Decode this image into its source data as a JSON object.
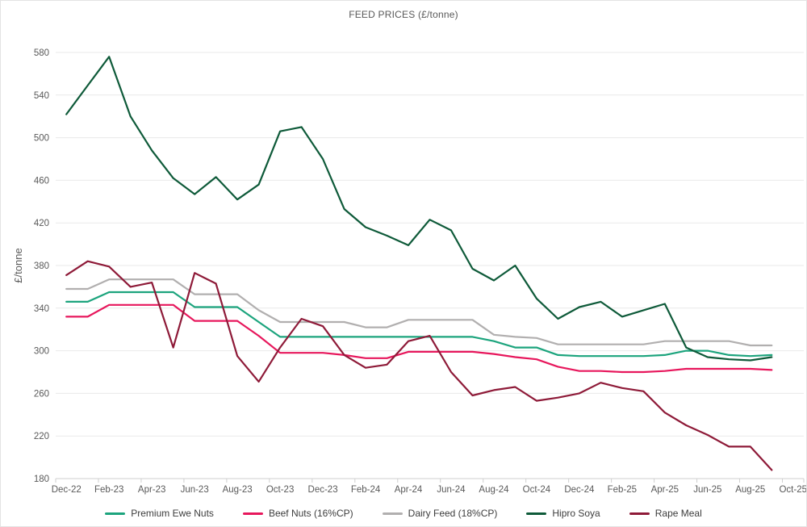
{
  "title": "FEED PRICES (£/tonne)",
  "colors": {
    "gridline": "#e9e9e9",
    "axis": "#cfcfcf",
    "text": "#595959",
    "background": "#ffffff"
  },
  "y_axis": {
    "label": "£/tonne",
    "min": 180,
    "max": 580,
    "step": 40,
    "ticks": [
      180,
      220,
      260,
      300,
      340,
      380,
      420,
      460,
      500,
      540,
      580
    ]
  },
  "x_axis": {
    "tick_labels": [
      "Dec-22",
      "Feb-23",
      "Apr-23",
      "Jun-23",
      "Aug-23",
      "Oct-23",
      "Dec-23",
      "Feb-24",
      "Apr-24",
      "Jun-24",
      "Aug-24",
      "Oct-24",
      "Dec-24",
      "Feb-25",
      "Apr-25",
      "Jun-25",
      "Aug-25",
      "Oct-25"
    ]
  },
  "chart_data": {
    "type": "line",
    "title": "FEED PRICES (£/tonne)",
    "xlabel": "",
    "ylabel": "£/tonne",
    "ylim": [
      180,
      580
    ],
    "grid": "horizontal",
    "legend_position": "bottom",
    "x_monthly": [
      "Dec-22",
      "Jan-23",
      "Feb-23",
      "Mar-23",
      "Apr-23",
      "May-23",
      "Jun-23",
      "Jul-23",
      "Aug-23",
      "Sep-23",
      "Oct-23",
      "Nov-23",
      "Dec-23",
      "Jan-24",
      "Feb-24",
      "Mar-24",
      "Apr-24",
      "May-24",
      "Jun-24",
      "Jul-24",
      "Aug-24",
      "Sep-24",
      "Oct-24",
      "Nov-24",
      "Dec-24",
      "Jan-25",
      "Feb-25",
      "Mar-25",
      "Apr-25",
      "May-25",
      "Jun-25",
      "Jul-25",
      "Aug-25",
      "Sep-25"
    ],
    "series": [
      {
        "name": "Premium Ewe Nuts",
        "color": "#1ca47d",
        "values": [
          346,
          346,
          355,
          355,
          355,
          355,
          341,
          341,
          341,
          327,
          313,
          313,
          313,
          313,
          313,
          313,
          313,
          313,
          313,
          313,
          309,
          303,
          303,
          296,
          295,
          295,
          295,
          295,
          296,
          300,
          300,
          296,
          295,
          296
        ]
      },
      {
        "name": "Beef Nuts (16%CP)",
        "color": "#e7175c",
        "values": [
          332,
          332,
          343,
          343,
          343,
          343,
          328,
          328,
          328,
          314,
          298,
          298,
          298,
          296,
          293,
          293,
          299,
          299,
          299,
          299,
          297,
          294,
          292,
          285,
          281,
          281,
          280,
          280,
          281,
          283,
          283,
          283,
          283,
          282
        ]
      },
      {
        "name": "Dairy Feed (18%CP)",
        "color": "#b1afaf",
        "values": [
          358,
          358,
          367,
          367,
          367,
          367,
          353,
          353,
          353,
          338,
          327,
          327,
          327,
          327,
          322,
          322,
          329,
          329,
          329,
          329,
          315,
          313,
          312,
          306,
          306,
          306,
          306,
          306,
          309,
          309,
          309,
          309,
          305,
          305
        ]
      },
      {
        "name": "Hipro Soya",
        "color": "#0e5a39",
        "values": [
          522,
          549,
          576,
          520,
          488,
          462,
          447,
          463,
          442,
          456,
          506,
          510,
          480,
          433,
          416,
          408,
          399,
          423,
          413,
          377,
          366,
          380,
          349,
          330,
          341,
          346,
          332,
          338,
          344,
          303,
          294,
          292,
          291,
          294
        ]
      },
      {
        "name": "Rape Meal",
        "color": "#8e1a38",
        "values": [
          371,
          384,
          379,
          360,
          364,
          303,
          373,
          363,
          295,
          271,
          303,
          330,
          323,
          296,
          284,
          287,
          309,
          314,
          280,
          258,
          263,
          266,
          253,
          256,
          260,
          270,
          265,
          262,
          242,
          230,
          221,
          210,
          210,
          188
        ]
      }
    ]
  }
}
